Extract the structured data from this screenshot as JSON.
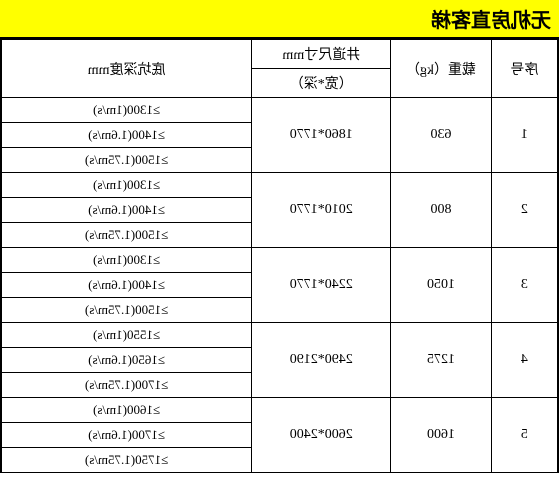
{
  "title": "无机房直客梯",
  "headers": {
    "col1": "序号",
    "col2": "载重（kg）",
    "col3_top": "井道尺寸mm",
    "col3_bottom": "（宽*深）",
    "col4": "底坑深度mm"
  },
  "rows": [
    {
      "seq": "1",
      "load": "630",
      "shaft": "1860*1770",
      "pits": [
        "≥1300(1m/s)",
        "≥1400(1.6m/s)",
        "≥1500(1.75m/s)"
      ]
    },
    {
      "seq": "2",
      "load": "800",
      "shaft": "2010*1770",
      "pits": [
        "≥1300(1m/s)",
        "≥1400(1.6m/s)",
        "≥1500(1.75m/s)"
      ]
    },
    {
      "seq": "3",
      "load": "1050",
      "shaft": "2240*1770",
      "pits": [
        "≥1300(1m/s)",
        "≥1400(1.6m/s)",
        "≥1500(1.75m/s)"
      ]
    },
    {
      "seq": "4",
      "load": "1275",
      "shaft": "2490*2190",
      "pits": [
        "≥1550(1m/s)",
        "≥1650(1.6m/s)",
        "≥1700(1.75m/s)"
      ]
    },
    {
      "seq": "5",
      "load": "1600",
      "shaft": "2600*2400",
      "pits": [
        "≥1600(1m/s)",
        "≥1700(1.6m/s)",
        "≥1750(1.75m/s)"
      ]
    }
  ],
  "colors": {
    "title_bg": "#ffff00",
    "border": "#000000",
    "bg": "#ffffff"
  }
}
